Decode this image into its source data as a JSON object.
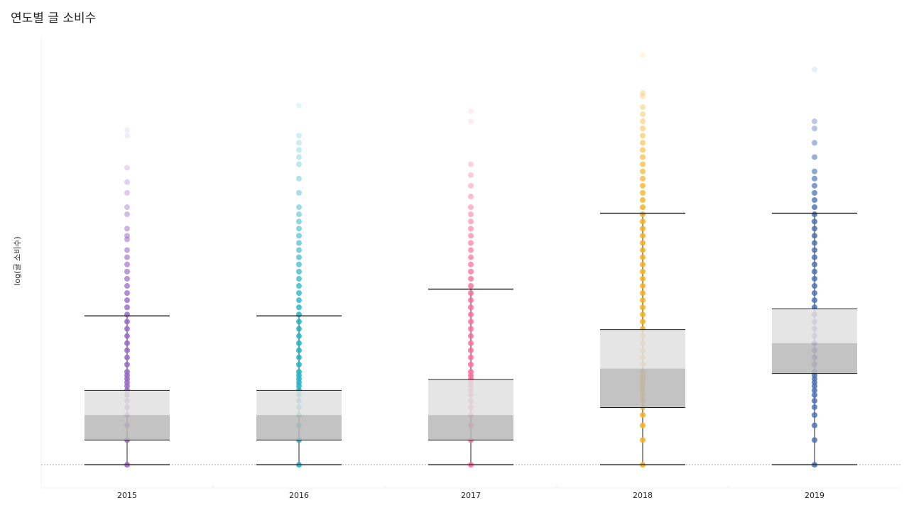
{
  "chart_data": {
    "type": "box",
    "title": "연도별 글 소비수",
    "y_label": "log(글 소비수)",
    "categories": [
      "2015",
      "2016",
      "2017",
      "2018",
      "2019"
    ],
    "ylim": [
      -0.65,
      12
    ],
    "reference_line": 0,
    "boxes": [
      {
        "color": "#9b67c8",
        "low": 0,
        "q1": 0.69,
        "median": 1.39,
        "q3": 2.08,
        "high": 4.16,
        "points": [
          0,
          0.69,
          1.1,
          1.39,
          1.61,
          1.79,
          1.95,
          2.08,
          2.2,
          2.3,
          2.4,
          2.5,
          2.6,
          2.8,
          3.0,
          3.2,
          3.4,
          3.6,
          3.8,
          4.0,
          4.2,
          4.4,
          4.6,
          4.8,
          5.0,
          5.2,
          5.4,
          5.6,
          5.8,
          6.0,
          6.3,
          6.4,
          6.6,
          7.0,
          7.2,
          7.6,
          7.9,
          8.3,
          9.2,
          9.35
        ]
      },
      {
        "color": "#22b4c4",
        "low": 0,
        "q1": 0.69,
        "median": 1.39,
        "q3": 2.08,
        "high": 4.16,
        "points": [
          0,
          0.69,
          1.1,
          1.39,
          1.61,
          1.79,
          1.95,
          2.08,
          2.2,
          2.3,
          2.4,
          2.5,
          2.6,
          2.8,
          3.0,
          3.2,
          3.4,
          3.6,
          3.8,
          4.0,
          4.2,
          4.4,
          4.6,
          4.8,
          5.0,
          5.2,
          5.4,
          5.6,
          5.8,
          6.0,
          6.2,
          6.4,
          6.6,
          6.8,
          7.0,
          7.2,
          7.6,
          8.0,
          8.4,
          8.6,
          8.8,
          9.0,
          9.2,
          10.04
        ]
      },
      {
        "color": "#ff6f99",
        "low": 0,
        "q1": 0.69,
        "median": 1.39,
        "q3": 2.38,
        "high": 4.91,
        "points": [
          0,
          0.69,
          1.1,
          1.39,
          1.61,
          1.79,
          1.95,
          2.08,
          2.2,
          2.3,
          2.4,
          2.5,
          2.6,
          2.8,
          3.0,
          3.2,
          3.4,
          3.6,
          3.8,
          4.0,
          4.2,
          4.4,
          4.6,
          4.8,
          5.0,
          5.2,
          5.4,
          5.6,
          5.8,
          6.0,
          6.2,
          6.4,
          6.6,
          6.8,
          7.0,
          7.2,
          7.5,
          7.8,
          8.1,
          8.4,
          9.6,
          9.88
        ]
      },
      {
        "color": "#f5b01f",
        "low": 0,
        "q1": 1.6,
        "median": 2.69,
        "q3": 3.78,
        "high": 7.03,
        "points": [
          0,
          0.69,
          1.1,
          1.39,
          1.61,
          1.79,
          1.95,
          2.08,
          2.2,
          2.3,
          2.4,
          2.5,
          2.6,
          2.8,
          3.0,
          3.2,
          3.4,
          3.6,
          3.8,
          4.0,
          4.2,
          4.4,
          4.6,
          4.8,
          5.0,
          5.2,
          5.4,
          5.6,
          5.8,
          6.0,
          6.2,
          6.4,
          6.6,
          6.8,
          7.0,
          7.2,
          7.4,
          7.6,
          7.8,
          8.0,
          8.2,
          8.4,
          8.6,
          8.8,
          9.0,
          9.2,
          9.4,
          9.6,
          9.8,
          10.0,
          10.3,
          10.4,
          11.45
        ]
      },
      {
        "color": "#4a72b8",
        "low": 0,
        "q1": 2.55,
        "median": 3.4,
        "q3": 4.36,
        "high": 7.03,
        "points": [
          0,
          0.69,
          1.1,
          1.39,
          1.61,
          1.79,
          1.95,
          2.08,
          2.2,
          2.3,
          2.4,
          2.5,
          2.6,
          2.8,
          3.0,
          3.2,
          3.4,
          3.6,
          3.8,
          4.0,
          4.2,
          4.4,
          4.6,
          4.8,
          5.0,
          5.2,
          5.4,
          5.6,
          5.8,
          6.0,
          6.2,
          6.4,
          6.6,
          6.8,
          7.0,
          7.2,
          7.4,
          7.6,
          7.8,
          8.0,
          8.2,
          8.6,
          9.0,
          9.4,
          9.6,
          11.05
        ]
      }
    ]
  }
}
